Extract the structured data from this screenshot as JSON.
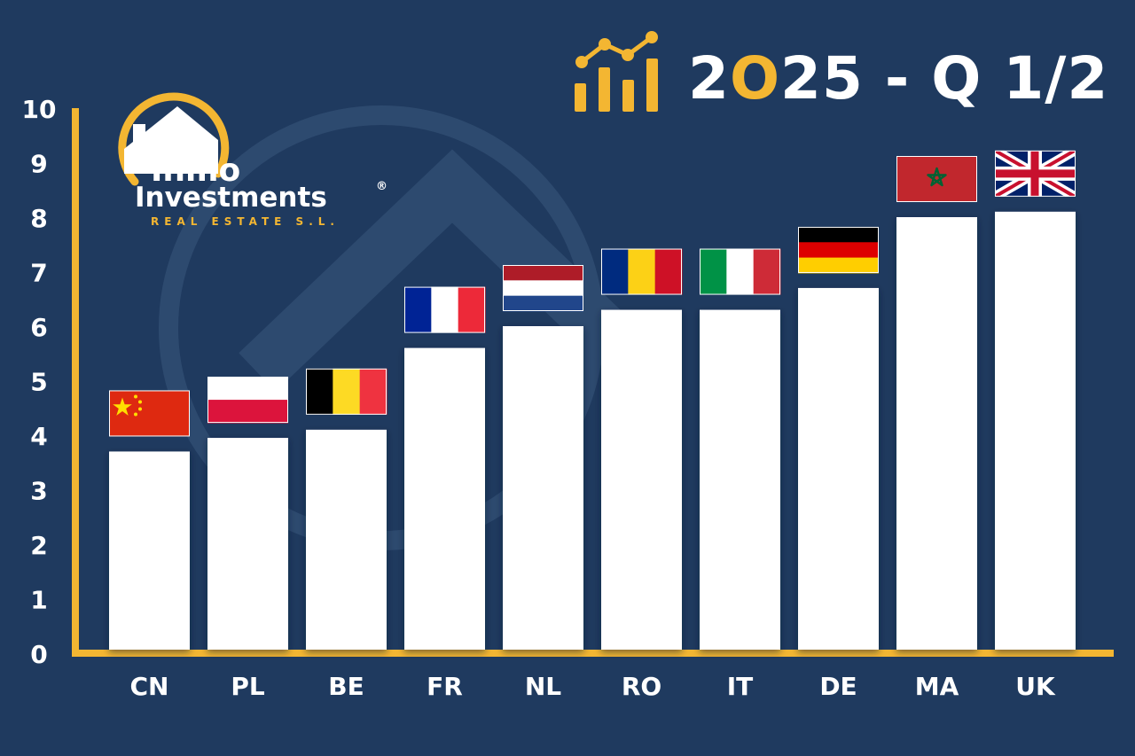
{
  "title": {
    "prefix": "2",
    "accent": "O",
    "suffix": "25 - Q 1/2"
  },
  "logo": {
    "line1": "Inmo",
    "line2": "Investments",
    "registered": "®",
    "line3": "REAL ESTATE S.L."
  },
  "colors": {
    "background": "#1f3a5f",
    "accent": "#f3b632",
    "bar": "#ffffff"
  },
  "chart_data": {
    "type": "bar",
    "title": "2025 - Q 1/2",
    "xlabel": "",
    "ylabel": "",
    "ylim": [
      0,
      10
    ],
    "yticks": [
      "0",
      "1",
      "2",
      "3",
      "4",
      "5",
      "6",
      "7",
      "8",
      "9",
      "10"
    ],
    "categories": [
      "CN",
      "PL",
      "BE",
      "FR",
      "NL",
      "RO",
      "IT",
      "DE",
      "MA",
      "UK"
    ],
    "values": [
      3.7,
      3.95,
      4.1,
      5.6,
      6.0,
      6.3,
      6.3,
      6.7,
      8.0,
      8.1
    ],
    "flags": [
      "cn-flag",
      "pl-flag",
      "be-flag",
      "fr-flag",
      "nl-flag",
      "ro-flag",
      "it-flag",
      "de-flag",
      "ma-flag",
      "uk-flag"
    ],
    "grid": false,
    "legend": "none"
  }
}
